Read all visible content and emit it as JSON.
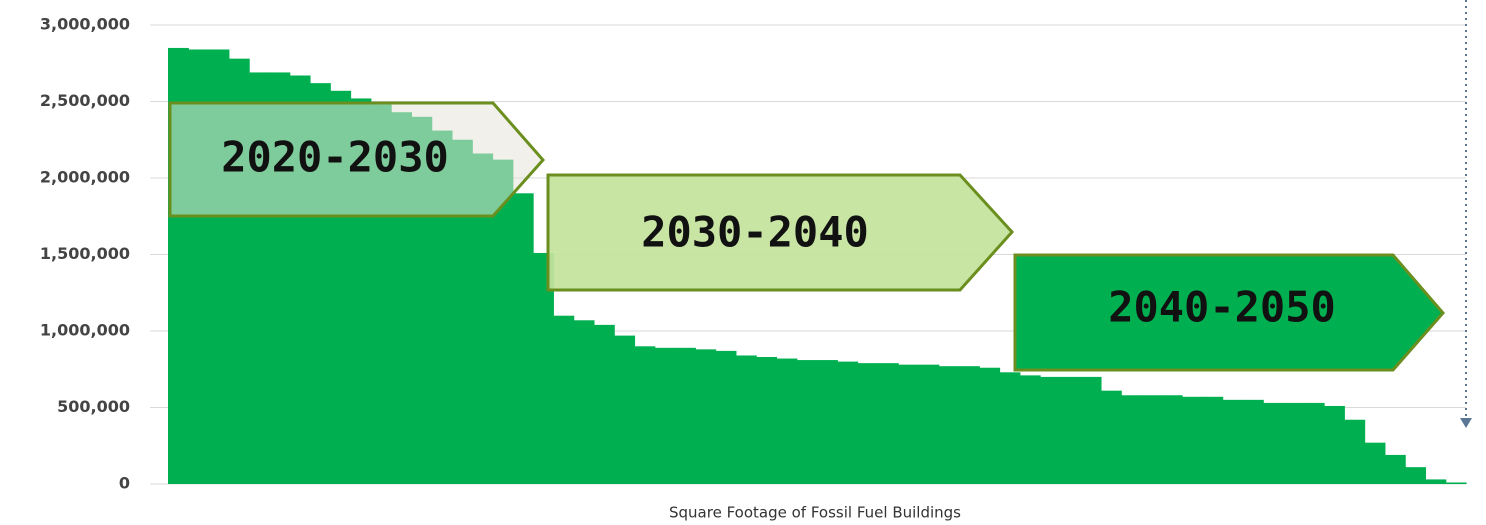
{
  "chart_data": {
    "type": "bar",
    "x_label": "Square Footage of Fossil Fuel Buildings",
    "annotations": [
      "2020-2030",
      "2030-2040",
      "2040-2050"
    ],
    "categories": [
      null,
      null,
      null,
      null,
      null,
      null,
      null,
      null,
      null,
      null,
      null,
      null,
      null,
      null,
      null,
      null,
      null,
      null,
      null,
      null,
      null,
      null,
      null,
      null,
      null,
      null,
      null,
      null,
      null,
      null,
      null,
      null,
      null,
      null,
      null,
      null,
      null,
      null,
      null,
      null,
      null,
      null,
      null,
      null,
      null,
      null,
      null,
      null,
      null,
      null,
      null,
      null,
      null,
      null,
      null,
      null,
      null,
      null,
      null,
      null,
      null,
      null,
      null,
      null
    ],
    "values": [
      2850000,
      2840000,
      2840000,
      2780000,
      2690000,
      2690000,
      2670000,
      2620000,
      2570000,
      2520000,
      2480000,
      2430000,
      2400000,
      2310000,
      2250000,
      2160000,
      2120000,
      1900000,
      1510000,
      1100000,
      1070000,
      1040000,
      970000,
      900000,
      890000,
      890000,
      880000,
      870000,
      840000,
      830000,
      820000,
      810000,
      810000,
      800000,
      790000,
      790000,
      780000,
      780000,
      770000,
      770000,
      760000,
      730000,
      710000,
      700000,
      700000,
      700000,
      610000,
      580000,
      580000,
      580000,
      570000,
      570000,
      550000,
      550000,
      530000,
      530000,
      530000,
      510000,
      420000,
      270000,
      190000,
      110000,
      30000,
      10000
    ],
    "color": "#00b050",
    "ylim": [
      0,
      3000000
    ],
    "yticks": [
      {
        "value": 0,
        "label": "0"
      },
      {
        "value": 500000,
        "label": "500,000"
      },
      {
        "value": 1000000,
        "label": "1,000,000"
      },
      {
        "value": 1500000,
        "label": "1,500,000"
      },
      {
        "value": 2000000,
        "label": "2,000,000"
      },
      {
        "value": 2500000,
        "label": "2,500,000"
      },
      {
        "value": 3000000,
        "label": "3,000,000"
      }
    ],
    "grid": true
  }
}
